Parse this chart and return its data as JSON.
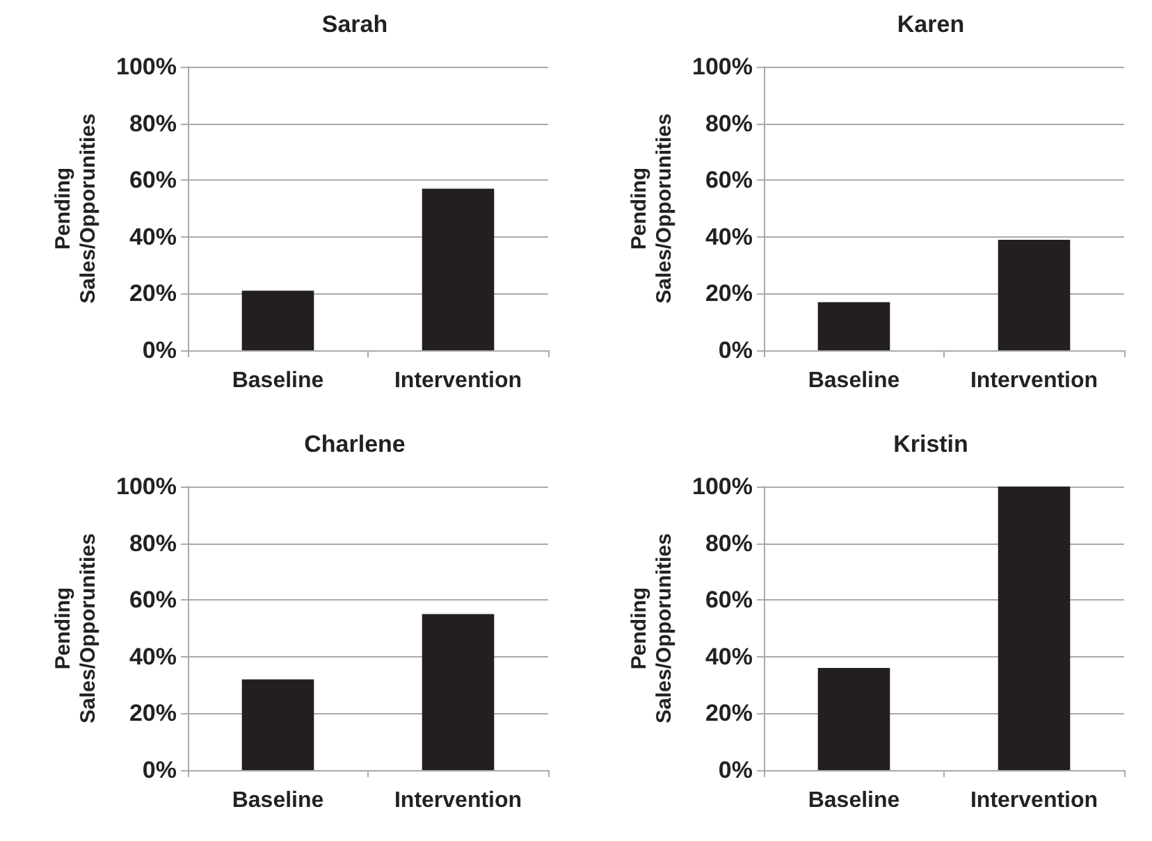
{
  "chart_data": [
    {
      "type": "bar",
      "title": "Sarah",
      "ylabel": "Pending\nSales/Opporunities",
      "categories": [
        "Baseline",
        "Intervention"
      ],
      "values": [
        21,
        57
      ],
      "color": "#231f20",
      "ylim": [
        0,
        100
      ],
      "yticks": [
        {
          "value": 0,
          "label": "0%"
        },
        {
          "value": 20,
          "label": "20%"
        },
        {
          "value": 40,
          "label": "40%"
        },
        {
          "value": 60,
          "label": "60%"
        },
        {
          "value": 80,
          "label": "80%"
        },
        {
          "value": 100,
          "label": "100%"
        }
      ],
      "grid": "y"
    },
    {
      "type": "bar",
      "title": "Karen",
      "ylabel": "Pending\nSales/Opporunities",
      "categories": [
        "Baseline",
        "Intervention"
      ],
      "values": [
        17,
        39
      ],
      "color": "#231f20",
      "ylim": [
        0,
        100
      ],
      "yticks": [
        {
          "value": 0,
          "label": "0%"
        },
        {
          "value": 20,
          "label": "20%"
        },
        {
          "value": 40,
          "label": "40%"
        },
        {
          "value": 60,
          "label": "60%"
        },
        {
          "value": 80,
          "label": "80%"
        },
        {
          "value": 100,
          "label": "100%"
        }
      ],
      "grid": "y"
    },
    {
      "type": "bar",
      "title": "Charlene",
      "ylabel": "Pending\nSales/Opporunities",
      "categories": [
        "Baseline",
        "Intervention"
      ],
      "values": [
        32,
        55
      ],
      "color": "#231f20",
      "ylim": [
        0,
        100
      ],
      "yticks": [
        {
          "value": 0,
          "label": "0%"
        },
        {
          "value": 20,
          "label": "20%"
        },
        {
          "value": 40,
          "label": "40%"
        },
        {
          "value": 60,
          "label": "60%"
        },
        {
          "value": 80,
          "label": "80%"
        },
        {
          "value": 100,
          "label": "100%"
        }
      ],
      "grid": "y"
    },
    {
      "type": "bar",
      "title": "Kristin",
      "ylabel": "Pending\nSales/Opporunities",
      "categories": [
        "Baseline",
        "Intervention"
      ],
      "values": [
        36,
        100
      ],
      "color": "#231f20",
      "ylim": [
        0,
        100
      ],
      "yticks": [
        {
          "value": 0,
          "label": "0%"
        },
        {
          "value": 20,
          "label": "20%"
        },
        {
          "value": 40,
          "label": "40%"
        },
        {
          "value": 60,
          "label": "60%"
        },
        {
          "value": 80,
          "label": "80%"
        },
        {
          "value": 100,
          "label": "100%"
        }
      ],
      "grid": "y"
    }
  ]
}
